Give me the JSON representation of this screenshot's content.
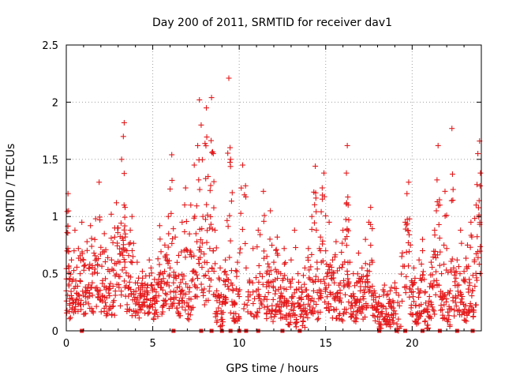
{
  "chart_data": {
    "type": "scatter",
    "title": "Day 200 of 2011, SRMTID for receiver dav1",
    "xlabel": "GPS time / hours",
    "ylabel": "SRMTID / TECUs",
    "xlim": [
      0,
      24
    ],
    "ylim": [
      0,
      2.5
    ],
    "xticks": [
      0,
      5,
      10,
      15,
      20
    ],
    "xtick_labels": [
      "0",
      "5",
      "10",
      "15",
      "20"
    ],
    "yticks": [
      0,
      0.5,
      1,
      1.5,
      2,
      2.5
    ],
    "ytick_labels": [
      "0",
      "0.5",
      "1",
      "1.5",
      "2",
      "2.5"
    ],
    "grid": true,
    "marker": "plus",
    "series_color": "#e41a1c",
    "series": [
      {
        "name": "SRMTID",
        "envelope_note": "dense point cloud; representative sampled points listed",
        "points": [
          [
            0.0,
            0.35
          ],
          [
            0.05,
            0.86
          ],
          [
            0.1,
            1.2
          ],
          [
            0.15,
            0.55
          ],
          [
            0.2,
            0.28
          ],
          [
            0.3,
            0.62
          ],
          [
            0.4,
            0.45
          ],
          [
            0.5,
            0.88
          ],
          [
            0.6,
            0.33
          ],
          [
            0.7,
            0.72
          ],
          [
            0.8,
            0.5
          ],
          [
            0.9,
            0.95
          ],
          [
            1.0,
            0.62
          ],
          [
            1.1,
            0.3
          ],
          [
            1.2,
            0.78
          ],
          [
            1.3,
            0.55
          ],
          [
            1.4,
            0.92
          ],
          [
            1.5,
            0.42
          ],
          [
            1.6,
            0.68
          ],
          [
            1.7,
            0.98
          ],
          [
            1.8,
            0.58
          ],
          [
            1.9,
            1.3
          ],
          [
            2.0,
            0.73
          ],
          [
            2.1,
            0.44
          ],
          [
            2.2,
            0.85
          ],
          [
            2.3,
            0.36
          ],
          [
            2.4,
            0.64
          ],
          [
            2.5,
            0.52
          ],
          [
            2.6,
            1.02
          ],
          [
            2.7,
            0.39
          ],
          [
            2.8,
            0.82
          ],
          [
            2.9,
            1.12
          ],
          [
            3.0,
            0.9
          ],
          [
            3.1,
            0.6
          ],
          [
            3.2,
            1.5
          ],
          [
            3.3,
            1.7
          ],
          [
            3.35,
            1.82
          ],
          [
            3.4,
            1.08
          ],
          [
            3.5,
            0.7
          ],
          [
            3.6,
            0.48
          ],
          [
            3.7,
            0.88
          ],
          [
            3.8,
            1.0
          ],
          [
            3.9,
            0.32
          ],
          [
            4.0,
            0.42
          ],
          [
            4.1,
            0.6
          ],
          [
            4.2,
            0.25
          ],
          [
            4.3,
            0.36
          ],
          [
            4.4,
            0.52
          ],
          [
            4.5,
            0.3
          ],
          [
            4.6,
            0.48
          ],
          [
            4.7,
            0.4
          ],
          [
            4.8,
            0.62
          ],
          [
            4.9,
            0.55
          ],
          [
            5.0,
            0.28
          ],
          [
            5.1,
            0.45
          ],
          [
            5.2,
            0.34
          ],
          [
            5.3,
            0.63
          ],
          [
            5.4,
            0.92
          ],
          [
            5.5,
            0.38
          ],
          [
            5.6,
            0.5
          ],
          [
            5.7,
            0.75
          ],
          [
            5.8,
            0.62
          ],
          [
            5.9,
            1.0
          ],
          [
            6.0,
            0.55
          ],
          [
            6.1,
            1.54
          ],
          [
            6.2,
            0.42
          ],
          [
            6.3,
            0.82
          ],
          [
            6.4,
            0.2
          ],
          [
            6.5,
            0.66
          ],
          [
            6.6,
            0.32
          ],
          [
            6.7,
            0.95
          ],
          [
            6.8,
            0.48
          ],
          [
            6.9,
            1.25
          ],
          [
            7.0,
            0.7
          ],
          [
            7.1,
            0.28
          ],
          [
            7.2,
            1.1
          ],
          [
            7.3,
            0.52
          ],
          [
            7.4,
            1.45
          ],
          [
            7.5,
            0.85
          ],
          [
            7.6,
            1.62
          ],
          [
            7.7,
            2.02
          ],
          [
            7.8,
            1.8
          ],
          [
            7.9,
            1.0
          ],
          [
            8.0,
            0.6
          ],
          [
            8.1,
            1.95
          ],
          [
            8.2,
            1.35
          ],
          [
            8.3,
            0.72
          ],
          [
            8.4,
            2.04
          ],
          [
            8.5,
            1.55
          ],
          [
            8.6,
            0.88
          ],
          [
            8.7,
            0.35
          ],
          [
            8.8,
            0.2
          ],
          [
            8.9,
            0.55
          ],
          [
            9.0,
            0.1
          ],
          [
            9.1,
            0.3
          ],
          [
            9.2,
            0.62
          ],
          [
            9.3,
            0.45
          ],
          [
            9.4,
            2.21
          ],
          [
            9.5,
            1.5
          ],
          [
            9.6,
            0.4
          ],
          [
            9.7,
            0.25
          ],
          [
            9.8,
            0.15
          ],
          [
            9.9,
            0.6
          ],
          [
            10.0,
            0.3
          ],
          [
            10.2,
            1.45
          ],
          [
            10.4,
            0.55
          ],
          [
            10.6,
            0.42
          ],
          [
            10.8,
            0.72
          ],
          [
            11.0,
            0.35
          ],
          [
            11.1,
            0.88
          ],
          [
            11.2,
            0.5
          ],
          [
            11.4,
            1.22
          ],
          [
            11.5,
            0.3
          ],
          [
            11.6,
            0.65
          ],
          [
            11.7,
            0.42
          ],
          [
            11.8,
            1.05
          ],
          [
            11.9,
            0.22
          ],
          [
            12.0,
            0.6
          ],
          [
            12.1,
            0.35
          ],
          [
            12.2,
            0.82
          ],
          [
            12.3,
            0.18
          ],
          [
            12.4,
            0.5
          ],
          [
            12.5,
            0.3
          ],
          [
            12.6,
            0.72
          ],
          [
            12.7,
            0.25
          ],
          [
            12.8,
            0.45
          ],
          [
            12.9,
            0.15
          ],
          [
            13.0,
            0.62
          ],
          [
            13.1,
            0.3
          ],
          [
            13.2,
            0.88
          ],
          [
            13.3,
            0.1
          ],
          [
            13.4,
            0.5
          ],
          [
            13.5,
            0.22
          ],
          [
            13.6,
            0.38
          ],
          [
            13.7,
            0.08
          ],
          [
            13.8,
            0.55
          ],
          [
            13.9,
            0.3
          ],
          [
            14.0,
            0.72
          ],
          [
            14.1,
            0.45
          ],
          [
            14.2,
            1.0
          ],
          [
            14.3,
            0.35
          ],
          [
            14.4,
            1.44
          ],
          [
            14.5,
            0.6
          ],
          [
            14.6,
            0.28
          ],
          [
            14.7,
            0.82
          ],
          [
            14.8,
            1.25
          ],
          [
            14.9,
            1.38
          ],
          [
            15.0,
            0.7
          ],
          [
            15.1,
            0.5
          ],
          [
            15.2,
            0.95
          ],
          [
            15.3,
            0.32
          ],
          [
            15.4,
            0.62
          ],
          [
            15.5,
            0.42
          ],
          [
            15.6,
            0.78
          ],
          [
            15.7,
            0.3
          ],
          [
            15.8,
            0.55
          ],
          [
            15.9,
            0.25
          ],
          [
            16.0,
            0.88
          ],
          [
            16.1,
            0.4
          ],
          [
            16.2,
            1.38
          ],
          [
            16.25,
            1.62
          ],
          [
            16.3,
            1.1
          ],
          [
            16.4,
            0.6
          ],
          [
            16.5,
            0.3
          ],
          [
            16.6,
            0.5
          ],
          [
            16.7,
            0.22
          ],
          [
            16.8,
            0.42
          ],
          [
            16.9,
            0.68
          ],
          [
            17.0,
            0.35
          ],
          [
            17.1,
            0.55
          ],
          [
            17.2,
            0.28
          ],
          [
            17.3,
            0.8
          ],
          [
            17.4,
            0.45
          ],
          [
            17.5,
            0.95
          ],
          [
            17.6,
            1.08
          ],
          [
            17.7,
            0.6
          ],
          [
            17.8,
            0.35
          ],
          [
            17.9,
            0.25
          ],
          [
            18.0,
            0.12
          ],
          [
            18.1,
            0.3
          ],
          [
            18.2,
            0.05
          ],
          [
            18.3,
            0.22
          ],
          [
            18.4,
            0.4
          ],
          [
            18.5,
            0.15
          ],
          [
            18.6,
            0.32
          ],
          [
            18.7,
            0.1
          ],
          [
            18.8,
            0.38
          ],
          [
            18.9,
            0.2
          ],
          [
            19.0,
            0.42
          ],
          [
            19.2,
            0.0
          ],
          [
            19.4,
            0.65
          ],
          [
            19.6,
            0.95
          ],
          [
            19.7,
            1.2
          ],
          [
            19.8,
            1.3
          ],
          [
            19.9,
            0.75
          ],
          [
            20.0,
            0.4
          ],
          [
            20.1,
            0.55
          ],
          [
            20.2,
            0.22
          ],
          [
            20.3,
            0.1
          ],
          [
            20.4,
            0.62
          ],
          [
            20.5,
            0.35
          ],
          [
            20.6,
            0.8
          ],
          [
            20.7,
            0.45
          ],
          [
            20.8,
            0.18
          ],
          [
            20.9,
            0.05
          ],
          [
            21.0,
            0.3
          ],
          [
            21.1,
            0.6
          ],
          [
            21.2,
            0.4
          ],
          [
            21.3,
            0.88
          ],
          [
            21.4,
            1.05
          ],
          [
            21.5,
            1.62
          ],
          [
            21.6,
            1.1
          ],
          [
            21.7,
            0.5
          ],
          [
            21.8,
            0.3
          ],
          [
            21.9,
            1.22
          ],
          [
            22.0,
            0.72
          ],
          [
            22.1,
            0.1
          ],
          [
            22.2,
            0.35
          ],
          [
            22.3,
            1.77
          ],
          [
            22.4,
            0.55
          ],
          [
            22.5,
            0.25
          ],
          [
            22.6,
            0.62
          ],
          [
            22.7,
            0.4
          ],
          [
            22.8,
            0.88
          ],
          [
            22.9,
            0.3
          ],
          [
            23.0,
            0.52
          ],
          [
            23.1,
            0.22
          ],
          [
            23.2,
            0.75
          ],
          [
            23.3,
            0.45
          ],
          [
            23.4,
            0.95
          ],
          [
            23.5,
            0.35
          ],
          [
            23.6,
            0.62
          ],
          [
            23.7,
            1.1
          ],
          [
            23.8,
            1.55
          ],
          [
            23.9,
            1.66
          ],
          [
            23.95,
            1.38
          ]
        ]
      }
    ],
    "zero_markers_x": [
      0.9,
      6.2,
      7.8,
      8.4,
      9.0,
      9.5,
      10.0,
      10.4,
      11.1,
      12.5,
      13.5,
      18.1,
      19.1,
      19.6,
      20.6,
      21.6,
      22.6,
      23.5
    ]
  }
}
